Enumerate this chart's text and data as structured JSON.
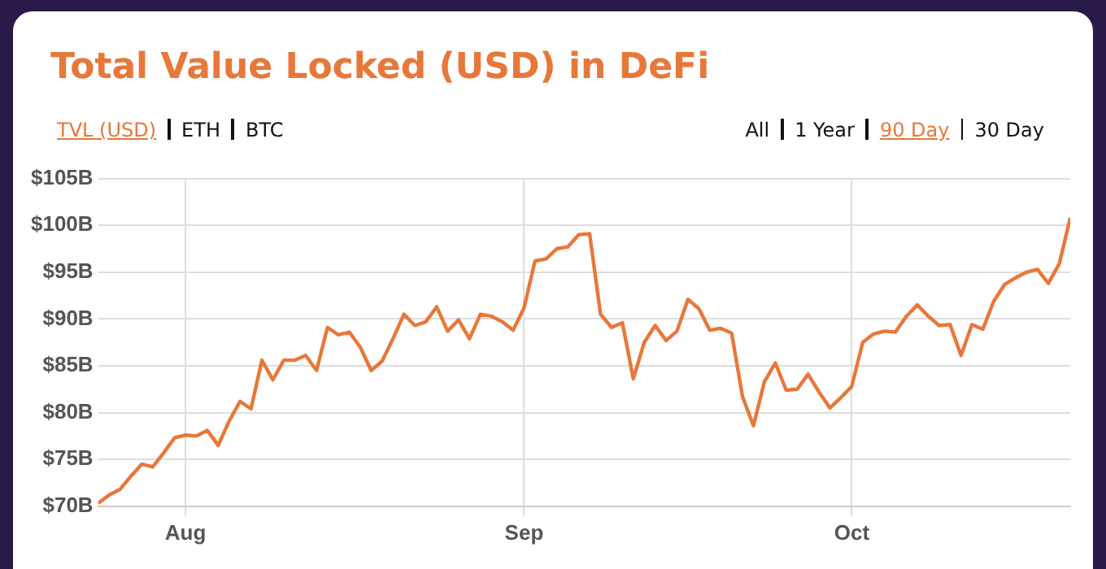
{
  "chart_data": {
    "type": "line",
    "title": "Total Value Locked (USD) in DeFi",
    "annotations": [
      "TVL (USD)",
      "ETH",
      "BTC",
      "All",
      "1 Year",
      "90 Day",
      "30 Day"
    ],
    "x": [
      "--07-24",
      "--07-25",
      "--07-26",
      "--07-27",
      "--07-28",
      "--07-29",
      "--07-30",
      "--07-31",
      "--08-01",
      "--08-02",
      "--08-03",
      "--08-04",
      "--08-05",
      "--08-06",
      "--08-07",
      "--08-08",
      "--08-09",
      "--08-10",
      "--08-11",
      "--08-12",
      "--08-13",
      "--08-14",
      "--08-15",
      "--08-16",
      "--08-17",
      "--08-18",
      "--08-19",
      "--08-20",
      "--08-21",
      "--08-22",
      "--08-23",
      "--08-24",
      "--08-25",
      "--08-26",
      "--08-27",
      "--08-28",
      "--08-29",
      "--08-30",
      "--08-31",
      "--09-01",
      "--09-02",
      "--09-03",
      "--09-04",
      "--09-05",
      "--09-06",
      "--09-07",
      "--09-08",
      "--09-09",
      "--09-10",
      "--09-11",
      "--09-12",
      "--09-13",
      "--09-14",
      "--09-15",
      "--09-16",
      "--09-17",
      "--09-18",
      "--09-19",
      "--09-20",
      "--09-21",
      "--09-22",
      "--09-23",
      "--09-24",
      "--09-25",
      "--09-26",
      "--09-27",
      "--09-28",
      "--09-29",
      "--09-30",
      "--10-01",
      "--10-02",
      "--10-03",
      "--10-04",
      "--10-05",
      "--10-06",
      "--10-07",
      "--10-08",
      "--10-09",
      "--10-10",
      "--10-11",
      "--10-12",
      "--10-13",
      "--10-14",
      "--10-15",
      "--10-16",
      "--10-17",
      "--10-18",
      "--10-19",
      "--10-20",
      "--10-21"
    ],
    "series": [
      {
        "color": "#e8773a",
        "values": [
          70.3,
          71.2,
          71.8,
          73.2,
          74.5,
          74.2,
          75.7,
          77.3,
          77.6,
          77.5,
          78.1,
          76.5,
          79.1,
          81.2,
          80.4,
          85.6,
          83.5,
          85.6,
          85.6,
          86.1,
          84.5,
          89.1,
          88.3,
          88.6,
          87.0,
          84.5,
          85.5,
          87.9,
          90.5,
          89.3,
          89.7,
          91.3,
          88.7,
          89.9,
          87.9,
          90.5,
          90.3,
          89.7,
          88.8,
          91.2,
          96.2,
          96.4,
          97.5,
          97.7,
          99.0,
          99.1,
          90.5,
          89.1,
          89.6,
          83.6,
          87.5,
          89.3,
          87.7,
          88.7,
          92.1,
          91.1,
          88.8,
          89.0,
          88.5,
          81.7,
          78.6,
          83.3,
          85.3,
          82.4,
          82.5,
          84.1,
          82.2,
          80.5,
          81.6,
          82.8,
          87.5,
          88.4,
          88.7,
          88.6,
          90.3,
          91.5,
          90.3,
          89.3,
          89.4,
          86.1,
          89.4,
          88.9,
          91.9,
          93.7,
          94.4,
          95.0,
          95.3,
          93.8,
          95.9,
          100.8
        ]
      }
    ],
    "xlim": [
      "--07-24",
      "--10-21"
    ],
    "xticks": [
      {
        "value": "--08-01",
        "label": "Aug"
      },
      {
        "value": "--09-01",
        "label": "Sep"
      },
      {
        "value": "--10-01",
        "label": "Oct"
      }
    ],
    "ylim": [
      70,
      105
    ],
    "yticks": [
      {
        "value": 70,
        "label": "$70B"
      },
      {
        "value": 75,
        "label": "$75B"
      },
      {
        "value": 80,
        "label": "$80B"
      },
      {
        "value": 85,
        "label": "$85B"
      },
      {
        "value": 90,
        "label": "$90B"
      },
      {
        "value": 95,
        "label": "$95B"
      },
      {
        "value": 100,
        "label": "$100B"
      },
      {
        "value": 105,
        "label": "$105B"
      }
    ],
    "grid": true,
    "legend": false,
    "marker": "none",
    "line_style": "solid"
  }
}
